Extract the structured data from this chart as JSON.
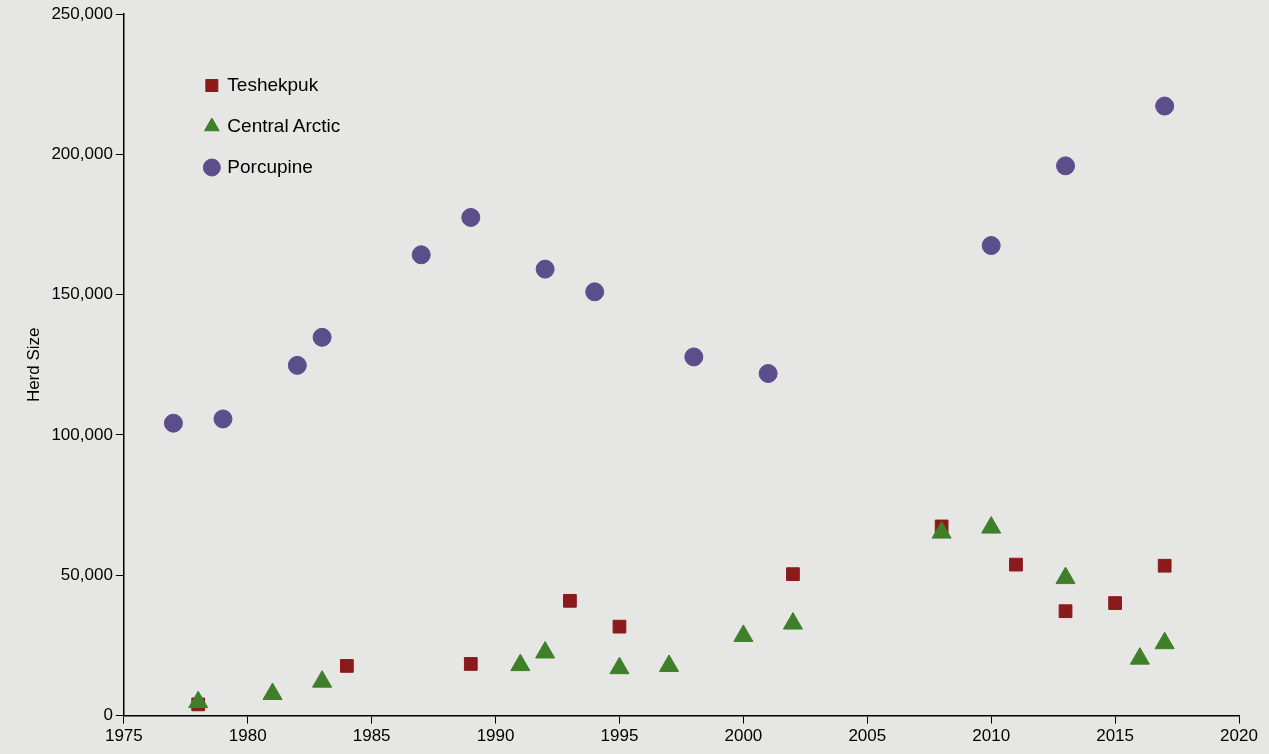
{
  "chart_data": {
    "type": "scatter",
    "ylabel": "Herd Size",
    "xlim": [
      1975,
      2020
    ],
    "xticks": [
      1975,
      1980,
      1985,
      1990,
      1995,
      2000,
      2005,
      2010,
      2015,
      2020
    ],
    "ylim": [
      0,
      250000
    ],
    "yticks": [
      {
        "value": 0,
        "label": "0"
      },
      {
        "value": 50000,
        "label": "50,000"
      },
      {
        "value": 100000,
        "label": "100,000"
      },
      {
        "value": 150000,
        "label": "150,000"
      },
      {
        "value": 200000,
        "label": "200,000"
      },
      {
        "value": 250000,
        "label": "250,000"
      }
    ],
    "grid": false,
    "legend": "top left",
    "series": [
      {
        "name": "Teshekpuk",
        "color": "#8b1a1a",
        "marker": "square",
        "x": [
          1978,
          1984,
          1989,
          1993,
          1995,
          2002,
          2008,
          2011,
          2013,
          2015,
          2017
        ],
        "values": [
          4000,
          17700,
          18400,
          40900,
          31700,
          50400,
          67400,
          53800,
          37200,
          40100,
          53400
        ]
      },
      {
        "name": "Central Arctic",
        "color": "#3f7f2a",
        "marker": "triangle",
        "x": [
          1978,
          1981,
          1983,
          1991,
          1992,
          1995,
          1997,
          2000,
          2002,
          2008,
          2010,
          2013,
          2016,
          2017
        ],
        "values": [
          4800,
          7700,
          12100,
          18000,
          22500,
          16900,
          17700,
          28400,
          32800,
          65200,
          67000,
          49000,
          20300,
          25800
        ]
      },
      {
        "name": "Porcupine",
        "color": "#5a4f8a",
        "marker": "circle",
        "x": [
          1977,
          1979,
          1982,
          1983,
          1987,
          1989,
          1992,
          1994,
          1998,
          2001,
          2010,
          2013,
          2017
        ],
        "values": [
          104200,
          105700,
          124800,
          134800,
          164200,
          177500,
          159100,
          151000,
          127800,
          121900,
          167500,
          195900,
          217200
        ]
      }
    ]
  }
}
